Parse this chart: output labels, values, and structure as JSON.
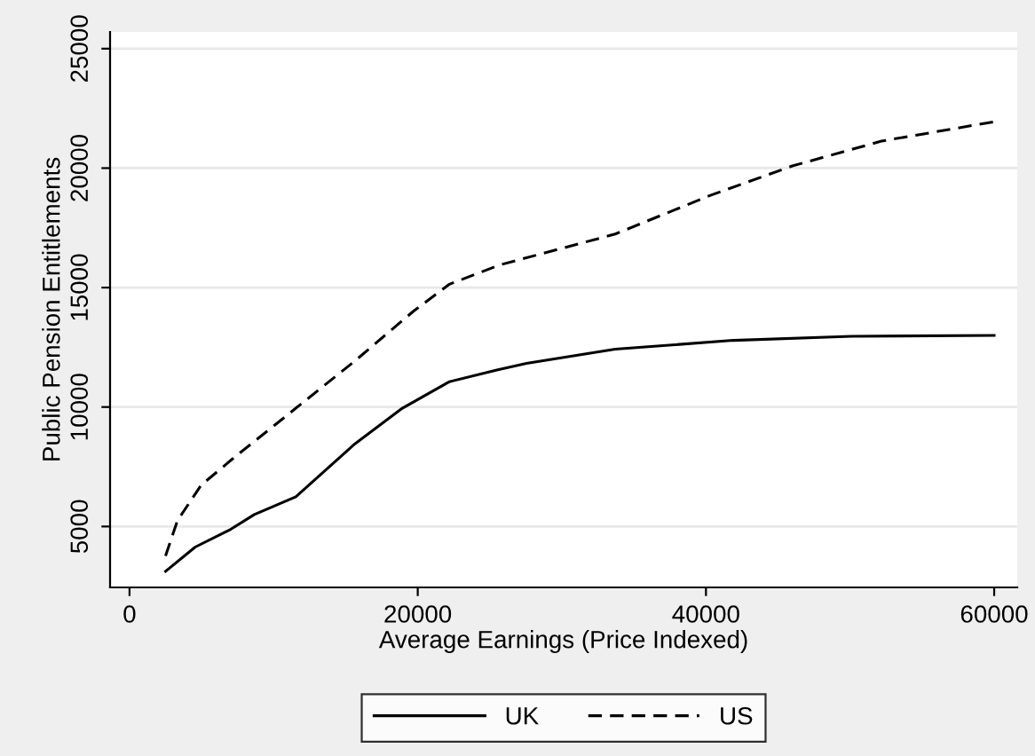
{
  "chart_data": {
    "type": "line",
    "xlabel": "Average Earnings (Price Indexed)",
    "ylabel": "Public Pension Entitlements",
    "xlim": [
      -1350,
      61600
    ],
    "xticks": [
      0,
      20000,
      40000,
      60000
    ],
    "ylim": [
      2450,
      25700
    ],
    "yticks": [
      5000,
      10000,
      15000,
      20000,
      25000
    ],
    "grid": "y",
    "legend": "bottom",
    "series": [
      {
        "name": "UK",
        "color": "#000000",
        "line_style": "solid",
        "x": [
          2500,
          4560,
          7020,
          8660,
          11540,
          15640,
          18930,
          22200,
          25490,
          27550,
          33700,
          41900,
          50100,
          60000
        ],
        "values": [
          3120,
          4140,
          4880,
          5500,
          6240,
          8460,
          9950,
          11060,
          11550,
          11830,
          12420,
          12790,
          12960,
          13000
        ]
      },
      {
        "name": "US",
        "color": "#000000",
        "line_style": "dashed",
        "x": [
          2500,
          3330,
          4970,
          7430,
          11540,
          15640,
          19740,
          22200,
          25700,
          33700,
          40270,
          45990,
          52180,
          60000
        ],
        "values": [
          3770,
          5250,
          6730,
          7970,
          9950,
          11930,
          14030,
          15140,
          15950,
          17240,
          18850,
          20090,
          21130,
          21940
        ]
      }
    ]
  }
}
